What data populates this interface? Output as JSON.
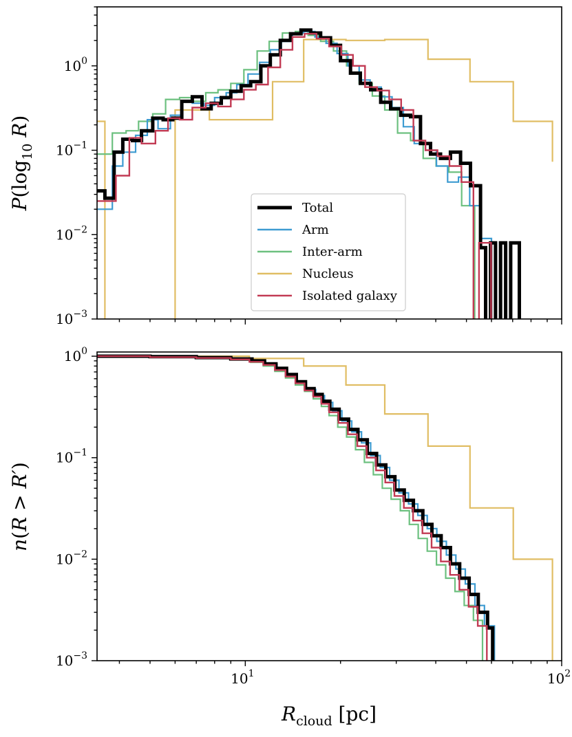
{
  "colors": {
    "Total": "#000000",
    "Arm": "#3d9bd1",
    "Inter-arm": "#6cc07f",
    "Nucleus": "#e0bd63",
    "Isolated galaxy": "#c23a53"
  },
  "chart_data": [
    {
      "type": "line",
      "step": true,
      "panel": "top",
      "xscale": "log",
      "yscale": "log",
      "xlim": [
        3.4,
        100
      ],
      "ylim": [
        0.001,
        5
      ],
      "ylabel": "P(log10 R)",
      "ylabel_parts": {
        "base": "P(log",
        "sub": "10",
        "var": "R",
        "close": ")"
      },
      "yticks": [
        {
          "value": 1,
          "label": "10",
          "exp": "0"
        },
        {
          "value": 0.1,
          "label": "10",
          "exp": "−1"
        },
        {
          "value": 0.01,
          "label": "10",
          "exp": "−2"
        },
        {
          "value": 0.001,
          "label": "10",
          "exp": "−3"
        }
      ],
      "legend": {
        "loc": "center",
        "entries": [
          "Total",
          "Arm",
          "Inter-arm",
          "Nucleus",
          "Isolated galaxy"
        ]
      },
      "series": [
        {
          "name": "Total",
          "x": [
            3.4,
            3.6,
            3.85,
            4.1,
            4.4,
            4.7,
            5.1,
            5.5,
            5.9,
            6.3,
            6.8,
            7.3,
            7.8,
            8.4,
            9.0,
            9.7,
            10.4,
            11.2,
            12.0,
            12.9,
            13.9,
            15.0,
            16.1,
            17.3,
            18.6,
            20.0,
            21.5,
            23.1,
            24.9,
            26.8,
            28.8,
            31.0,
            33.3,
            35.8,
            38.5,
            41.4,
            44.5,
            47.9,
            51.5,
            55.4,
            57.5,
            59.6,
            61.8,
            64.1,
            66.5,
            69.0,
            73.5
          ],
          "y": [
            0.033,
            0.027,
            0.095,
            0.135,
            0.13,
            0.17,
            0.24,
            0.23,
            0.24,
            0.38,
            0.43,
            0.31,
            0.36,
            0.42,
            0.5,
            0.58,
            0.65,
            1.0,
            1.35,
            2.0,
            2.4,
            2.65,
            2.45,
            2.15,
            1.75,
            1.15,
            0.82,
            0.62,
            0.52,
            0.37,
            0.31,
            0.26,
            0.25,
            0.12,
            0.09,
            0.08,
            0.095,
            0.07,
            0.038,
            0.007,
            0.0009,
            0.008,
            0.0009,
            0.008,
            0.0009,
            0.008,
            0.0009
          ]
        },
        {
          "name": "Arm",
          "x": [
            3.4,
            3.8,
            4.1,
            4.5,
            4.9,
            5.3,
            5.8,
            6.3,
            6.8,
            7.4,
            8.0,
            8.7,
            9.4,
            10.2,
            11.1,
            12.0,
            13.0,
            14.1,
            15.3,
            16.6,
            18.0,
            19.5,
            21.1,
            22.9,
            24.8,
            26.9,
            29.1,
            31.6,
            34.2,
            37.1,
            40.2,
            43.6,
            47.2,
            51.2,
            55.4,
            60.0
          ],
          "y": [
            0.02,
            0.065,
            0.095,
            0.15,
            0.23,
            0.18,
            0.26,
            0.38,
            0.36,
            0.34,
            0.42,
            0.48,
            0.6,
            0.8,
            1.1,
            1.55,
            1.95,
            2.45,
            2.55,
            2.2,
            1.85,
            1.4,
            1.0,
            0.68,
            0.56,
            0.43,
            0.32,
            0.19,
            0.12,
            0.1,
            0.065,
            0.042,
            0.048,
            0.022,
            0.009,
            0.0009
          ]
        },
        {
          "name": "Inter-arm",
          "x": [
            3.4,
            3.8,
            4.2,
            4.6,
            5.1,
            5.6,
            6.2,
            6.8,
            7.5,
            8.2,
            9.0,
            9.9,
            10.9,
            11.9,
            13.1,
            14.4,
            15.8,
            17.3,
            19.0,
            20.9,
            22.9,
            25.2,
            27.6,
            30.3,
            33.3,
            36.5,
            40.1,
            44.0,
            48.3,
            53.1
          ],
          "y": [
            0.09,
            0.16,
            0.17,
            0.22,
            0.27,
            0.4,
            0.42,
            0.38,
            0.48,
            0.52,
            0.62,
            0.9,
            1.5,
            1.95,
            2.45,
            2.55,
            2.3,
            1.95,
            1.5,
            1.0,
            0.62,
            0.44,
            0.3,
            0.16,
            0.13,
            0.08,
            0.065,
            0.055,
            0.022,
            0.0009
          ]
        },
        {
          "name": "Nucleus",
          "x": [
            3.4,
            3.6,
            4.5,
            6.0,
            7.7,
            10.0,
            12.2,
            15.3,
            20.8,
            27.6,
            37.8,
            51.3,
            70.3,
            93.5
          ],
          "y": [
            0.22,
            0.0009,
            0.0009,
            0.3,
            0.23,
            0.23,
            0.65,
            2.05,
            2.0,
            2.05,
            1.2,
            0.65,
            0.22,
            0.073
          ]
        },
        {
          "name": "Isolated galaxy",
          "x": [
            3.4,
            3.9,
            4.3,
            4.7,
            5.2,
            5.7,
            6.2,
            6.8,
            7.5,
            8.2,
            9.0,
            9.9,
            10.8,
            11.8,
            12.9,
            14.1,
            15.4,
            16.8,
            18.4,
            20.1,
            21.9,
            23.9,
            26.1,
            28.5,
            31.1,
            34.0,
            37.1,
            40.5,
            44.2,
            48.2,
            52.6,
            54.8,
            57.3,
            59.8,
            62.3
          ],
          "y": [
            0.025,
            0.05,
            0.14,
            0.12,
            0.17,
            0.24,
            0.23,
            0.32,
            0.36,
            0.33,
            0.4,
            0.52,
            0.6,
            0.96,
            1.55,
            2.2,
            2.4,
            2.1,
            1.7,
            1.35,
            1.0,
            0.56,
            0.51,
            0.4,
            0.3,
            0.13,
            0.1,
            0.085,
            0.065,
            0.042,
            0.0009,
            0.008,
            0.008,
            0.0009,
            0.0009
          ]
        }
      ]
    },
    {
      "type": "line",
      "step": true,
      "panel": "bottom",
      "xscale": "log",
      "yscale": "log",
      "xlim": [
        3.4,
        100
      ],
      "ylim": [
        0.001,
        1.1
      ],
      "ylabel": "n(R > R′)",
      "ylabel_parts": {
        "base": "n(",
        "var": "R",
        "op": " > ",
        "var2": "R′",
        "close": ")"
      },
      "xlabel": "R_cloud [pc]",
      "xlabel_parts": {
        "var": "R",
        "sub": "cloud",
        "unit": " [pc]"
      },
      "xticks": [
        {
          "value": 10,
          "label": "10",
          "exp": "1"
        },
        {
          "value": 100,
          "label": "10",
          "exp": "2"
        }
      ],
      "yticks": [
        {
          "value": 1,
          "label": "10",
          "exp": "0"
        },
        {
          "value": 0.1,
          "label": "10",
          "exp": "−1"
        },
        {
          "value": 0.01,
          "label": "10",
          "exp": "−2"
        },
        {
          "value": 0.001,
          "label": "10",
          "exp": "−3"
        }
      ],
      "series": [
        {
          "name": "Total",
          "x": [
            3.4,
            5,
            7,
            9,
            10.5,
            11.5,
            12.5,
            13.5,
            14.5,
            15.5,
            16.5,
            17.5,
            18.5,
            19.8,
            21.2,
            22.7,
            24.3,
            26,
            27.8,
            29.7,
            31.8,
            34,
            36.4,
            38.9,
            41.6,
            44.5,
            47.6,
            51,
            54.5,
            58.3,
            60.5
          ],
          "y": [
            1.0,
            0.99,
            0.97,
            0.94,
            0.9,
            0.84,
            0.76,
            0.66,
            0.56,
            0.48,
            0.42,
            0.36,
            0.3,
            0.24,
            0.19,
            0.15,
            0.11,
            0.085,
            0.065,
            0.048,
            0.038,
            0.03,
            0.022,
            0.017,
            0.013,
            0.009,
            0.0065,
            0.0045,
            0.003,
            0.0021,
            0.0009
          ]
        },
        {
          "name": "Arm",
          "x": [
            3.4,
            5,
            7,
            9,
            10.5,
            11.6,
            12.6,
            13.6,
            14.6,
            15.6,
            16.7,
            17.8,
            18.9,
            20.2,
            21.7,
            23.3,
            24.9,
            26.7,
            28.6,
            30.6,
            32.8,
            35.1,
            37.6,
            40.3,
            43.2,
            46.3,
            49.6,
            53.2,
            57,
            61.3
          ],
          "y": [
            1.0,
            0.99,
            0.97,
            0.93,
            0.89,
            0.83,
            0.74,
            0.64,
            0.55,
            0.47,
            0.41,
            0.35,
            0.29,
            0.23,
            0.18,
            0.14,
            0.105,
            0.08,
            0.06,
            0.045,
            0.035,
            0.027,
            0.02,
            0.015,
            0.011,
            0.008,
            0.0057,
            0.0035,
            0.0022,
            0.0009
          ]
        },
        {
          "name": "Inter-arm",
          "x": [
            3.4,
            5,
            7,
            9,
            10.4,
            11.4,
            12.4,
            13.4,
            14.4,
            15.4,
            16.4,
            17.4,
            18.4,
            19.6,
            20.9,
            22.3,
            23.8,
            25.4,
            27.1,
            28.9,
            30.9,
            33,
            35.2,
            37.6,
            40.2,
            43,
            46,
            49.2,
            52.6,
            56.2
          ],
          "y": [
            1.0,
            0.98,
            0.96,
            0.92,
            0.87,
            0.8,
            0.71,
            0.61,
            0.52,
            0.45,
            0.38,
            0.32,
            0.26,
            0.2,
            0.16,
            0.12,
            0.09,
            0.068,
            0.05,
            0.039,
            0.03,
            0.022,
            0.016,
            0.012,
            0.0088,
            0.0065,
            0.0048,
            0.0035,
            0.0025,
            0.0009
          ]
        },
        {
          "name": "Nucleus",
          "x": [
            3.4,
            10.3,
            15.3,
            20.8,
            27.6,
            37.8,
            51.3,
            70.3,
            93.5
          ],
          "y": [
            1.0,
            0.95,
            0.8,
            0.52,
            0.27,
            0.13,
            0.032,
            0.01,
            0.0009
          ]
        },
        {
          "name": "Isolated galaxy",
          "x": [
            3.4,
            5,
            7,
            9,
            10.3,
            11.4,
            12.4,
            13.4,
            14.4,
            15.4,
            16.4,
            17.4,
            18.4,
            19.7,
            21.1,
            22.6,
            24.2,
            25.9,
            27.7,
            29.6,
            31.7,
            33.9,
            36.3,
            38.8,
            41.5,
            44.4,
            47.5,
            50.8,
            54.3,
            58
          ],
          "y": [
            1.0,
            0.98,
            0.96,
            0.93,
            0.88,
            0.82,
            0.73,
            0.63,
            0.54,
            0.46,
            0.4,
            0.34,
            0.28,
            0.22,
            0.17,
            0.13,
            0.1,
            0.075,
            0.057,
            0.042,
            0.032,
            0.024,
            0.018,
            0.013,
            0.0095,
            0.007,
            0.005,
            0.0034,
            0.0022,
            0.0009
          ]
        }
      ]
    }
  ]
}
